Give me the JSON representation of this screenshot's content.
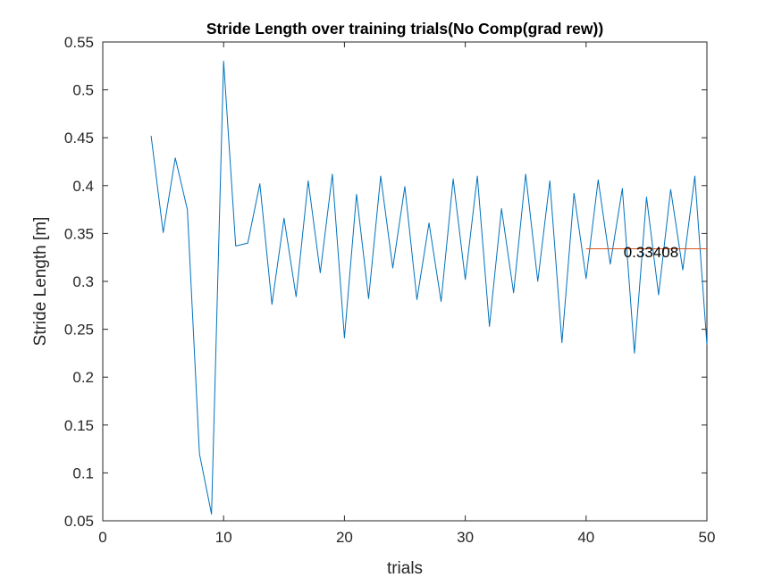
{
  "chart_data": {
    "type": "line",
    "title": "Stride Length over training trials(No Comp(grad rew))",
    "xlabel": "trials",
    "ylabel": "Stride Length [m]",
    "xlim": [
      0,
      50
    ],
    "ylim": [
      0.05,
      0.55
    ],
    "x_ticks": [
      0,
      10,
      20,
      30,
      40,
      50
    ],
    "x_tick_labels": [
      "0",
      "10",
      "20",
      "30",
      "40",
      "50"
    ],
    "y_ticks": [
      0.05,
      0.1,
      0.15,
      0.2,
      0.25,
      0.3,
      0.35,
      0.4,
      0.45,
      0.5,
      0.55
    ],
    "y_tick_labels": [
      "0.05",
      "0.1",
      "0.15",
      "0.2",
      "0.25",
      "0.3",
      "0.35",
      "0.4",
      "0.45",
      "0.5",
      "0.55"
    ],
    "grid": false,
    "series": [
      {
        "color": "#0072bd",
        "x": [
          4,
          5,
          6,
          7,
          8,
          9,
          10,
          11,
          12,
          13,
          14,
          15,
          16,
          17,
          18,
          19,
          20,
          21,
          22,
          23,
          24,
          25,
          26,
          27,
          28,
          29,
          30,
          31,
          32,
          33,
          34,
          35,
          36,
          37,
          38,
          39,
          40,
          41,
          42,
          43,
          44,
          45,
          46,
          47,
          48,
          49,
          50
        ],
        "y": [
          0.452,
          0.351,
          0.429,
          0.375,
          0.12,
          0.057,
          0.53,
          0.337,
          0.34,
          0.402,
          0.276,
          0.366,
          0.284,
          0.405,
          0.309,
          0.412,
          0.241,
          0.391,
          0.282,
          0.41,
          0.314,
          0.399,
          0.281,
          0.361,
          0.279,
          0.407,
          0.302,
          0.41,
          0.253,
          0.376,
          0.288,
          0.412,
          0.3,
          0.405,
          0.236,
          0.392,
          0.303,
          0.406,
          0.318,
          0.397,
          0.225,
          0.388,
          0.286,
          0.396,
          0.312,
          0.41,
          0.234
        ]
      },
      {
        "color": "#d95319",
        "x": [
          40,
          50
        ],
        "y": [
          0.33408,
          0.33408
        ]
      }
    ],
    "annotations": [
      {
        "text": "0.33408",
        "x": 43.1,
        "y": 0.331
      }
    ]
  }
}
